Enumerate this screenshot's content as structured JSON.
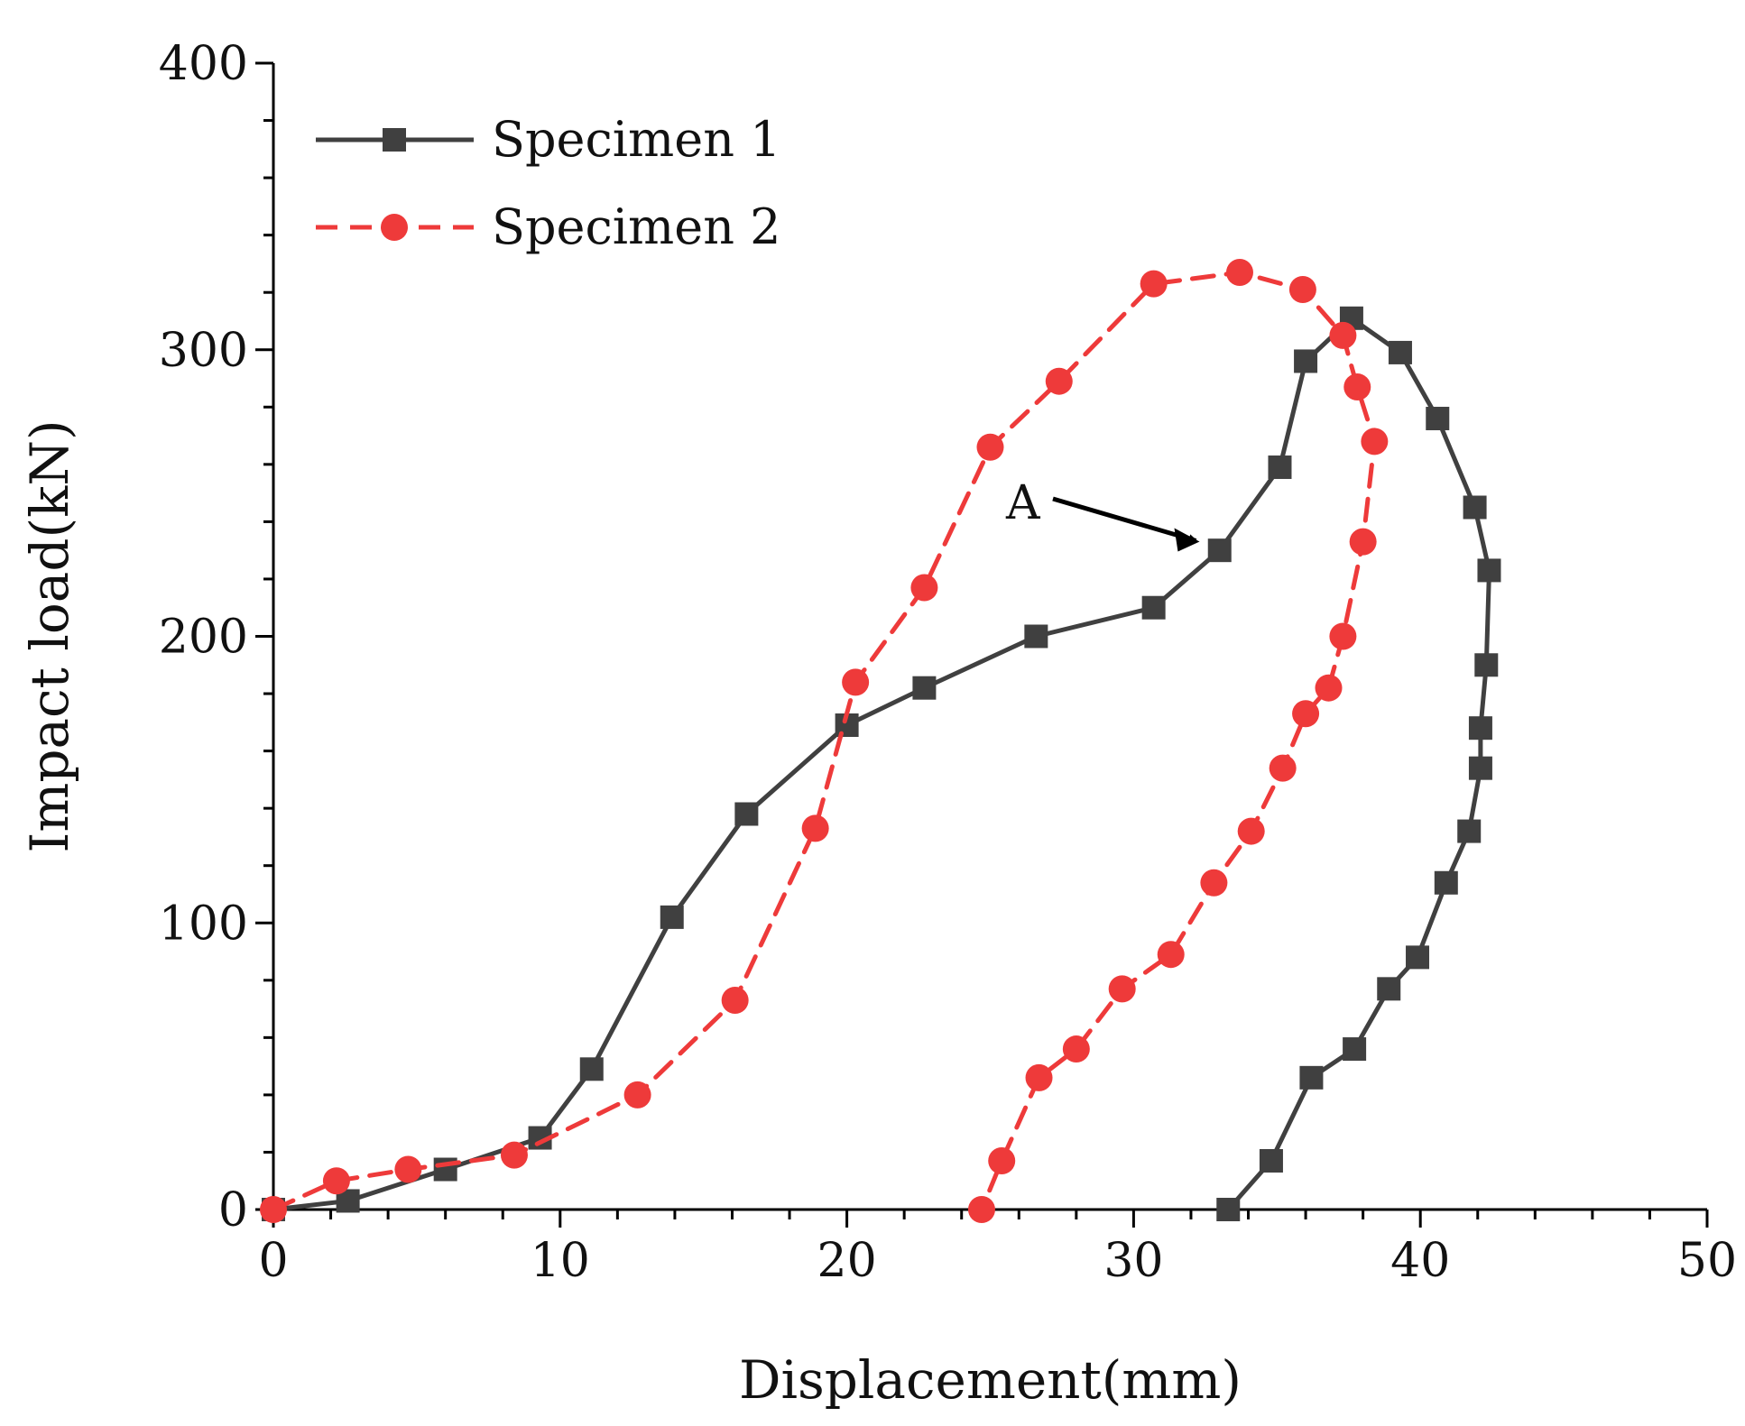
{
  "chart_data": {
    "type": "line",
    "title": "",
    "xlabel": "Displacement(mm)",
    "ylabel": "Impact load(kN)",
    "xlim": [
      0,
      50
    ],
    "ylim": [
      0,
      400
    ],
    "xticks": [
      0,
      10,
      20,
      30,
      40,
      50
    ],
    "yticks": [
      0,
      100,
      200,
      300,
      400
    ],
    "x_tick_labels": [
      "0",
      "10",
      "20",
      "30",
      "40",
      "50"
    ],
    "y_tick_labels": [
      "0",
      "100",
      "200",
      "300",
      "400"
    ],
    "grid": false,
    "legend_position": "top-left",
    "series": [
      {
        "name": "Specimen 1",
        "color": "#404040",
        "marker": "square",
        "line_style": "solid",
        "points": [
          [
            0,
            0
          ],
          [
            2.6,
            3
          ],
          [
            6.0,
            14
          ],
          [
            9.3,
            25
          ],
          [
            11.1,
            49
          ],
          [
            13.9,
            102
          ],
          [
            16.5,
            138
          ],
          [
            20.0,
            169
          ],
          [
            22.7,
            182
          ],
          [
            26.6,
            200
          ],
          [
            30.7,
            210
          ],
          [
            33.0,
            230
          ],
          [
            35.1,
            259
          ],
          [
            36.0,
            296
          ],
          [
            37.6,
            311
          ],
          [
            39.3,
            299
          ],
          [
            40.6,
            276
          ],
          [
            41.9,
            245
          ],
          [
            42.4,
            223
          ],
          [
            42.3,
            190
          ],
          [
            42.1,
            168
          ],
          [
            42.1,
            154
          ],
          [
            41.7,
            132
          ],
          [
            40.9,
            114
          ],
          [
            39.9,
            88
          ],
          [
            38.9,
            77
          ],
          [
            37.7,
            56
          ],
          [
            36.2,
            46
          ],
          [
            34.8,
            17
          ],
          [
            33.3,
            0
          ]
        ]
      },
      {
        "name": "Specimen 2",
        "color": "#ee3a3a",
        "marker": "circle",
        "line_style": "dashed",
        "points": [
          [
            0,
            0
          ],
          [
            2.2,
            10
          ],
          [
            4.7,
            14
          ],
          [
            8.4,
            19
          ],
          [
            12.7,
            40
          ],
          [
            16.1,
            73
          ],
          [
            18.9,
            133
          ],
          [
            20.3,
            184
          ],
          [
            22.7,
            217
          ],
          [
            25.0,
            266
          ],
          [
            27.4,
            289
          ],
          [
            30.7,
            323
          ],
          [
            33.7,
            327
          ],
          [
            35.9,
            321
          ],
          [
            37.3,
            305
          ],
          [
            37.8,
            287
          ],
          [
            38.4,
            268
          ],
          [
            38.0,
            233
          ],
          [
            37.3,
            200
          ],
          [
            36.8,
            182
          ],
          [
            36.0,
            173
          ],
          [
            35.2,
            154
          ],
          [
            34.1,
            132
          ],
          [
            32.8,
            114
          ],
          [
            31.3,
            89
          ],
          [
            29.6,
            77
          ],
          [
            28.0,
            56
          ],
          [
            26.7,
            46
          ],
          [
            25.4,
            17
          ],
          [
            24.7,
            0
          ]
        ]
      }
    ],
    "annotations": [
      {
        "text": "A",
        "points_to": [
          32.3,
          234
        ]
      }
    ]
  }
}
